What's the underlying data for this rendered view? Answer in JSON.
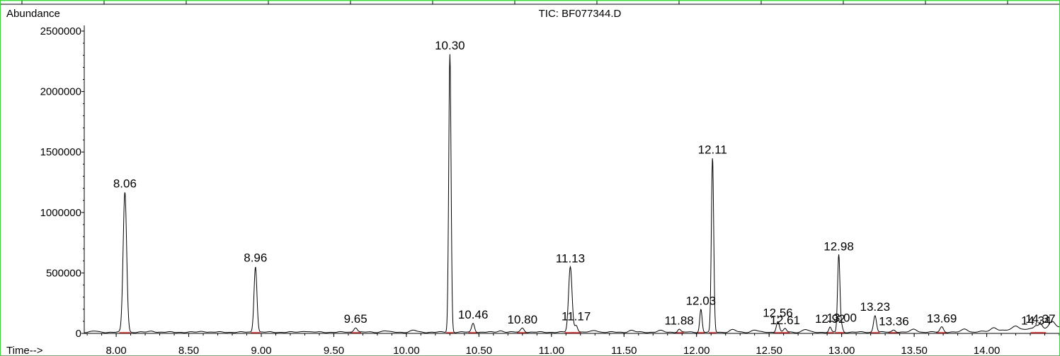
{
  "chart_data": {
    "type": "line",
    "title": "TIC: BF077344.D",
    "ylabel": "Abundance",
    "xlabel": "Time-->",
    "xlim": [
      7.78,
      14.5
    ],
    "ylim": [
      0,
      2500000
    ],
    "x_ticks": [
      8.0,
      8.5,
      9.0,
      9.5,
      10.0,
      10.5,
      11.0,
      11.5,
      12.0,
      12.5,
      13.0,
      13.5,
      14.0
    ],
    "x_tick_labels": [
      "8.00",
      "8.50",
      "9.00",
      "9.50",
      "10.00",
      "10.50",
      "11.00",
      "11.50",
      "12.00",
      "12.50",
      "13.00",
      "13.50",
      "14.00"
    ],
    "y_ticks": [
      0,
      500000,
      1000000,
      1500000,
      2000000,
      2500000
    ],
    "y_tick_labels": [
      "0",
      "500000",
      "1000000",
      "1500000",
      "2000000",
      "2500000"
    ],
    "grid": false,
    "baseline": 10000,
    "peaks": [
      {
        "rt": 8.06,
        "label": "8.06",
        "height": 1160000,
        "width": 0.012
      },
      {
        "rt": 8.96,
        "label": "8.96",
        "height": 545000,
        "width": 0.01
      },
      {
        "rt": 9.65,
        "label": "9.65",
        "height": 40000,
        "width": 0.012
      },
      {
        "rt": 10.3,
        "label": "10.30",
        "height": 2300000,
        "width": 0.008
      },
      {
        "rt": 10.46,
        "label": "10.46",
        "height": 75000,
        "width": 0.01
      },
      {
        "rt": 10.8,
        "label": "10.80",
        "height": 35000,
        "width": 0.012
      },
      {
        "rt": 11.13,
        "label": "11.13",
        "height": 540000,
        "width": 0.012
      },
      {
        "rt": 11.17,
        "label": "11.17",
        "height": 60000,
        "width": 0.01
      },
      {
        "rt": 11.88,
        "label": "11.88",
        "height": 25000,
        "width": 0.01
      },
      {
        "rt": 12.03,
        "label": "12.03",
        "height": 190000,
        "width": 0.008
      },
      {
        "rt": 12.11,
        "label": "12.11",
        "height": 1440000,
        "width": 0.008
      },
      {
        "rt": 12.56,
        "label": "12.56",
        "height": 90000,
        "width": 0.01
      },
      {
        "rt": 12.61,
        "label": "12.61",
        "height": 30000,
        "width": 0.01
      },
      {
        "rt": 12.92,
        "label": "12.92",
        "height": 40000,
        "width": 0.008
      },
      {
        "rt": 12.98,
        "label": "12.98",
        "height": 640000,
        "width": 0.008
      },
      {
        "rt": 13.0,
        "label": "13.00",
        "height": 50000,
        "width": 0.008
      },
      {
        "rt": 13.23,
        "label": "13.23",
        "height": 140000,
        "width": 0.01
      },
      {
        "rt": 13.36,
        "label": "13.36",
        "height": 20000,
        "width": 0.012
      },
      {
        "rt": 13.69,
        "label": "13.69",
        "height": 45000,
        "width": 0.012
      },
      {
        "rt": 14.34,
        "label": "14.34",
        "height": 25000,
        "width": 0.012
      },
      {
        "rt": 14.37,
        "label": "14.37",
        "height": 40000,
        "width": 0.012
      }
    ],
    "minor_bumps": [
      {
        "rt": 7.85,
        "height": 8000
      },
      {
        "rt": 8.25,
        "height": 9000
      },
      {
        "rt": 8.6,
        "height": 8000
      },
      {
        "rt": 9.3,
        "height": 10000
      },
      {
        "rt": 9.85,
        "height": 12000
      },
      {
        "rt": 10.05,
        "height": 15000
      },
      {
        "rt": 10.65,
        "height": 12000
      },
      {
        "rt": 11.3,
        "height": 15000
      },
      {
        "rt": 11.55,
        "height": 14000
      },
      {
        "rt": 11.75,
        "height": 12000
      },
      {
        "rt": 12.25,
        "height": 20000
      },
      {
        "rt": 12.4,
        "height": 18000
      },
      {
        "rt": 12.75,
        "height": 22000
      },
      {
        "rt": 13.5,
        "height": 25000
      },
      {
        "rt": 13.85,
        "height": 28000
      },
      {
        "rt": 14.05,
        "height": 30000
      },
      {
        "rt": 14.2,
        "height": 35000
      },
      {
        "rt": 14.45,
        "height": 50000
      }
    ],
    "trace_color": "#000000",
    "integration_color": "#e02020",
    "frame_color": "#3cd43c"
  }
}
